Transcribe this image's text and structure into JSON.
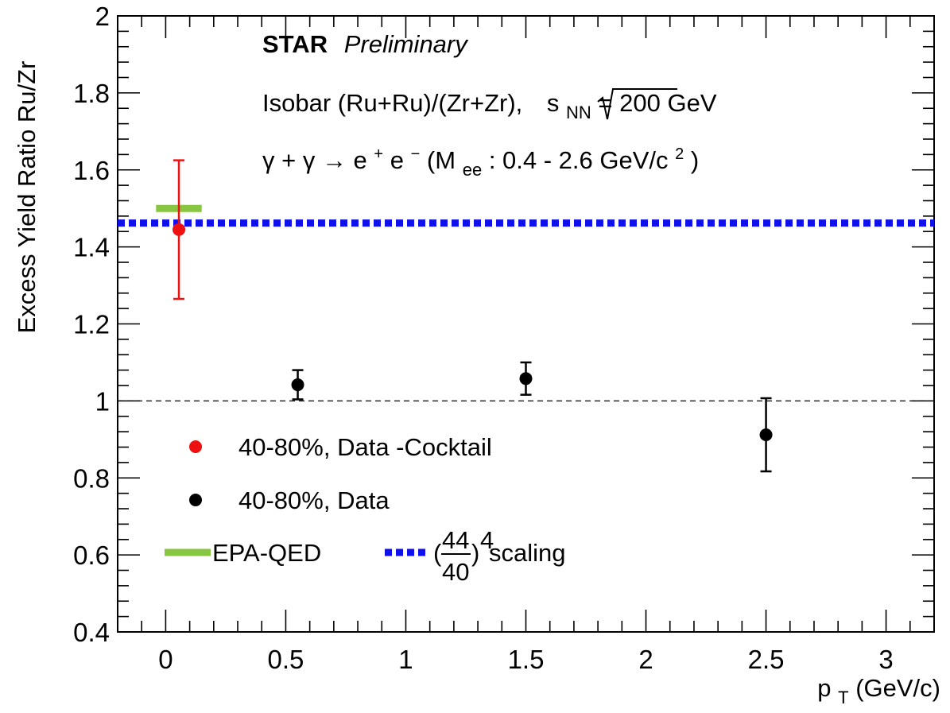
{
  "chart_data": {
    "type": "scatter",
    "title": "",
    "xlabel_main": "p",
    "xlabel_sub": "T",
    "xlabel_unit": " (GeV/c)",
    "ylabel": "Excess Yield Ratio Ru/Zr",
    "xlim": [
      -0.2,
      3.2
    ],
    "ylim": [
      0.4,
      2.0
    ],
    "x_ticks": [
      0,
      0.5,
      1,
      1.5,
      2,
      2.5,
      3
    ],
    "x_tick_labels": [
      "0",
      "0.5",
      "1",
      "1.5",
      "2",
      "2.5",
      "3"
    ],
    "y_ticks": [
      0.4,
      0.6,
      0.8,
      1.0,
      1.2,
      1.4,
      1.6,
      1.8,
      2.0
    ],
    "y_tick_labels": [
      "0.4",
      "0.6",
      "0.8",
      "1",
      "1.2",
      "1.4",
      "1.6",
      "1.8",
      "2"
    ],
    "reference_line": 1.0,
    "series": [
      {
        "name": "40-80%, Data -Cocktail",
        "color": "#ee1111",
        "points": [
          {
            "x": 0.055,
            "y": 1.445,
            "err": 0.18
          }
        ]
      },
      {
        "name": "40-80%, Data",
        "color": "#000000",
        "points": [
          {
            "x": 0.55,
            "y": 1.042,
            "err": 0.038
          },
          {
            "x": 1.5,
            "y": 1.058,
            "err": 0.042
          },
          {
            "x": 2.5,
            "y": 0.912,
            "err": 0.095
          }
        ]
      }
    ],
    "epa_qed": {
      "name": "EPA-QED",
      "color": "#88c540",
      "x_range": [
        -0.04,
        0.15
      ],
      "y": 1.5
    },
    "scaling": {
      "name_prefix": "(",
      "numerator": "44",
      "denominator": "40",
      "exponent": "4",
      "name_suffix": " scaling",
      "color": "#1010ee",
      "y": 1.462
    },
    "annotations": {
      "experiment": "STAR",
      "status": "Preliminary",
      "line2_prefix": "Isobar (Ru+Ru)/(Zr+Zr), ",
      "line2_sqrt_s": "s",
      "line2_sub": "NN",
      "line2_suffix": " = 200 GeV",
      "line3_prefix": "γ + γ → e",
      "line3_sup1": "+",
      "line3_mid": " e",
      "line3_sup2": "−",
      "line3_paren": " (M",
      "line3_sub": "ee",
      "line3_rest": ": 0.4 - 2.6 GeV/c",
      "line3_sup3": "2",
      "line3_close": ")"
    }
  }
}
